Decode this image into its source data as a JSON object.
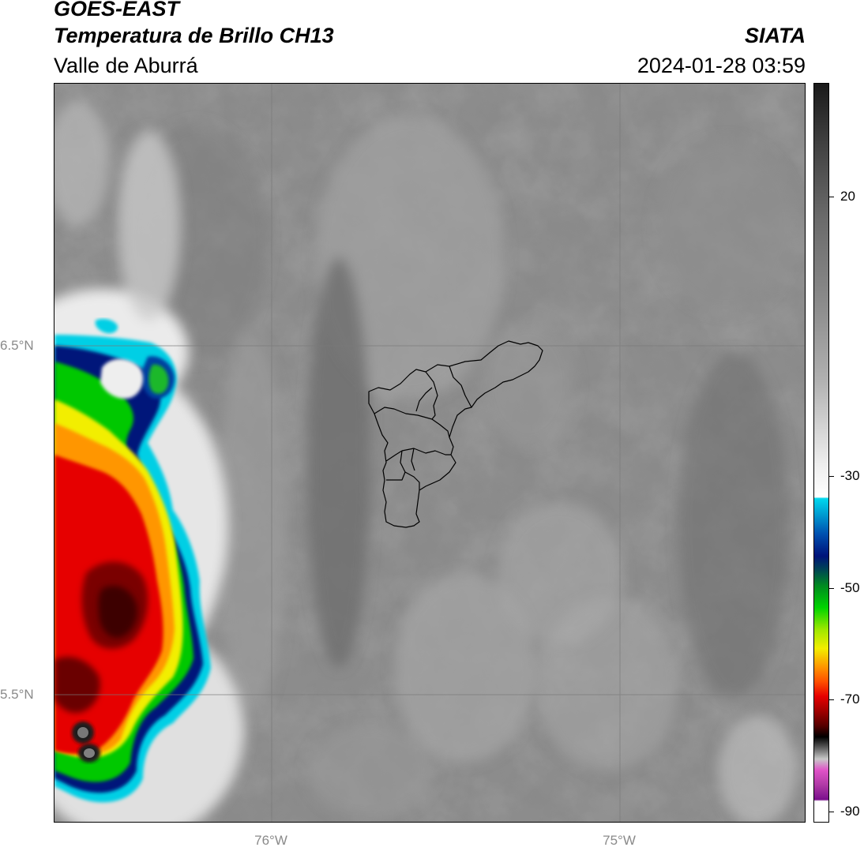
{
  "header": {
    "satellite": "GOES-EAST",
    "product": "Temperatura de Brillo CH13",
    "region": "Valle de Aburrá",
    "agency": "SIATA",
    "datetime": "2024-01-28 03:59"
  },
  "map": {
    "lat_labels": [
      "6.5°N",
      "5.5°N"
    ],
    "lon_labels": [
      "76°W",
      "75°W"
    ],
    "extent": {
      "lon": [
        -76.625,
        -74.47
      ],
      "lat": [
        5.135,
        7.25
      ]
    },
    "gridlines": {
      "lats": [
        6.5,
        5.5
      ],
      "lons": [
        -76.0,
        -75.0
      ]
    },
    "background": "grayscale cloud-top brightness temperature"
  },
  "colorbar": {
    "tick_labels": [
      "20",
      "-30",
      "-50",
      "-70",
      "-90"
    ],
    "tick_values": [
      20,
      -30,
      -50,
      -70,
      -90
    ],
    "range": [
      -92,
      38
    ],
    "colors": {
      "warm_gray_top": "#1a1a1a",
      "light_gray": "#f0f0f0",
      "cyan": "#00d8ee",
      "navy": "#00137a",
      "green": "#00d400",
      "yellow": "#f2ee00",
      "orange": "#ff9600",
      "red": "#e60000",
      "dark_red": "#550000",
      "magenta": "#e053c8",
      "purple": "#7a0f8c"
    }
  }
}
